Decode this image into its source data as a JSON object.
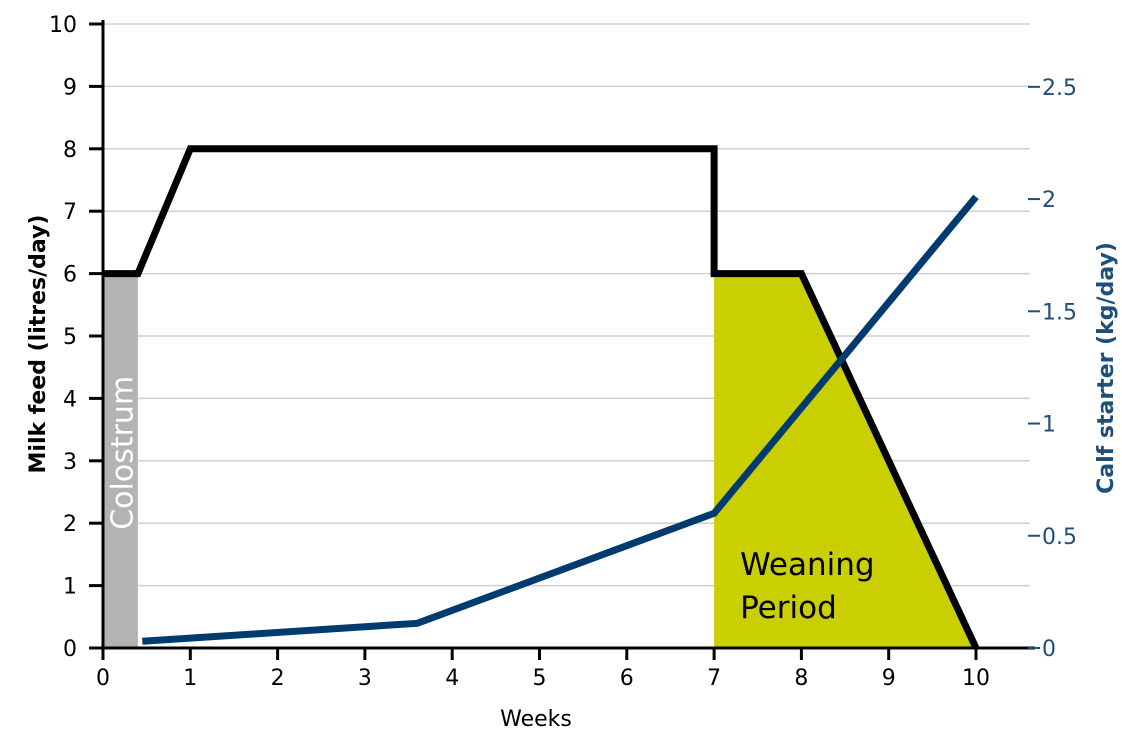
{
  "chart_data": {
    "type": "line",
    "title": "",
    "xlabel": "Weeks",
    "ylabel": "Milk feed (litres/day)",
    "y2label": "Calf starter (kg/day)",
    "xlim": [
      0,
      10.6
    ],
    "ylim": [
      0,
      10
    ],
    "y2lim": [
      0,
      2.78
    ],
    "xticks": [
      0,
      1,
      2,
      3,
      4,
      5,
      6,
      7,
      8,
      9,
      10
    ],
    "yticks": [
      0,
      1,
      2,
      3,
      4,
      5,
      6,
      7,
      8,
      9,
      10
    ],
    "y2ticks": [
      0,
      0.5,
      1,
      1.5,
      2,
      2.5
    ],
    "y2tick_labels": [
      "0",
      "0.5",
      "1",
      "1.5",
      "2",
      "2.5"
    ],
    "grid": true,
    "series": [
      {
        "axis": "left",
        "color": "#000000",
        "points": [
          {
            "x": 0,
            "y": 6
          },
          {
            "x": 0.4,
            "y": 6
          },
          {
            "x": 1,
            "y": 8
          },
          {
            "x": 7,
            "y": 8
          },
          {
            "x": 7,
            "y": 6
          },
          {
            "x": 8,
            "y": 6
          },
          {
            "x": 10,
            "y": 0
          }
        ]
      },
      {
        "axis": "right",
        "color": "#003b6f",
        "points": [
          {
            "x": 0.45,
            "y": 0.03
          },
          {
            "x": 3.6,
            "y": 0.11
          },
          {
            "x": 7,
            "y": 0.6
          },
          {
            "x": 10,
            "y": 2.01
          }
        ]
      }
    ],
    "regions": [
      {
        "label": "Colostrum",
        "color": "#b3b3b3",
        "x0": 0,
        "x1": 0.4,
        "y_top": 6,
        "label_color": "#ffffff"
      },
      {
        "label_lines": [
          "Weaning",
          "Period"
        ],
        "color": "#c9cf00",
        "polygon": [
          {
            "x": 7,
            "y": 0
          },
          {
            "x": 7,
            "y": 6
          },
          {
            "x": 8,
            "y": 6
          },
          {
            "x": 10,
            "y": 0
          }
        ],
        "label_color": "#000000"
      }
    ],
    "colors": {
      "left_axis": "#000000",
      "right_axis": "#1f4e79",
      "grid": "#cfcfcf"
    }
  }
}
